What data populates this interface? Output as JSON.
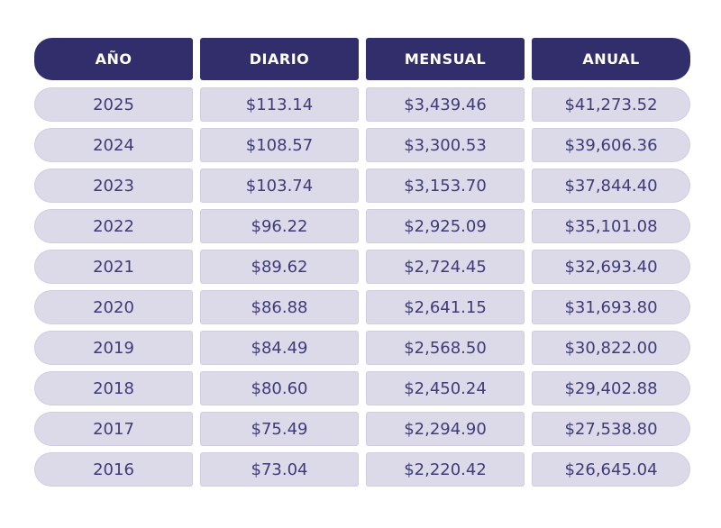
{
  "chart_data": {
    "type": "table",
    "columns": [
      "AÑO",
      "DIARIO",
      "MENSUAL",
      "ANUAL"
    ],
    "rows": [
      [
        "2025",
        "$113.14",
        "$3,439.46",
        "$41,273.52"
      ],
      [
        "2024",
        "$108.57",
        "$3,300.53",
        "$39,606.36"
      ],
      [
        "2023",
        "$103.74",
        "$3,153.70",
        "$37,844.40"
      ],
      [
        "2022",
        "$96.22",
        "$2,925.09",
        "$35,101.08"
      ],
      [
        "2021",
        "$89.62",
        "$2,724.45",
        "$32,693.40"
      ],
      [
        "2020",
        "$86.88",
        "$2,641.15",
        "$31,693.80"
      ],
      [
        "2019",
        "$84.49",
        "$2,568.50",
        "$30,822.00"
      ],
      [
        "2018",
        "$80.60",
        "$2,450.24",
        "$29,402.88"
      ],
      [
        "2017",
        "$75.49",
        "$2,294.90",
        "$27,538.80"
      ],
      [
        "2016",
        "$73.04",
        "$2,220.42",
        "$26,645.04"
      ]
    ],
    "title": "",
    "layout": {
      "grid": false,
      "header_position": "top"
    }
  },
  "colors": {
    "header_bg": "#312e6b",
    "header_text": "#ffffff",
    "row_bg": "#dcdae9",
    "row_text": "#3e3b78",
    "page_bg": "#ffffff"
  }
}
